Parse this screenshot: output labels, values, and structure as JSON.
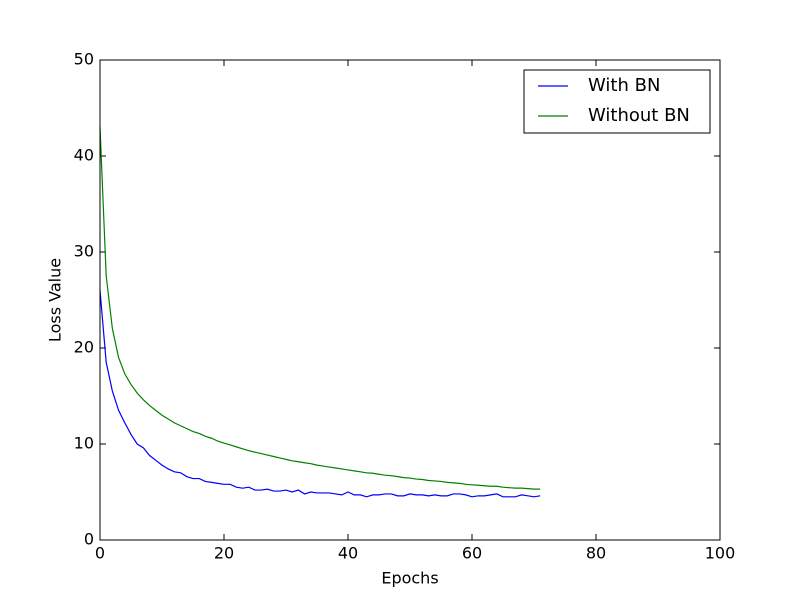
{
  "chart_data": {
    "type": "line",
    "xlabel": "Epochs",
    "ylabel": "Loss Value",
    "x": [
      0,
      1,
      2,
      3,
      4,
      5,
      6,
      7,
      8,
      9,
      10,
      11,
      12,
      13,
      14,
      15,
      16,
      17,
      18,
      19,
      20,
      21,
      22,
      23,
      24,
      25,
      26,
      27,
      28,
      29,
      30,
      31,
      32,
      33,
      34,
      35,
      36,
      37,
      38,
      39,
      40,
      41,
      42,
      43,
      44,
      45,
      46,
      47,
      48,
      49,
      50,
      51,
      52,
      53,
      54,
      55,
      56,
      57,
      58,
      59,
      60,
      61,
      62,
      63,
      64,
      65,
      66,
      67,
      68,
      69,
      70,
      71
    ],
    "series": [
      {
        "name": "With BN",
        "color": "#0000ff",
        "values": [
          26,
          18.5,
          15.5,
          13.5,
          12.2,
          11,
          10,
          9.6,
          8.8,
          8.3,
          7.8,
          7.4,
          7.1,
          7.0,
          6.6,
          6.4,
          6.4,
          6.1,
          6.0,
          5.9,
          5.8,
          5.8,
          5.5,
          5.4,
          5.5,
          5.2,
          5.2,
          5.3,
          5.1,
          5.1,
          5.2,
          5.0,
          5.2,
          4.8,
          5.0,
          4.9,
          4.9,
          4.9,
          4.8,
          4.7,
          5.0,
          4.7,
          4.7,
          4.5,
          4.7,
          4.7,
          4.8,
          4.8,
          4.6,
          4.6,
          4.8,
          4.7,
          4.7,
          4.6,
          4.7,
          4.6,
          4.6,
          4.8,
          4.8,
          4.7,
          4.5,
          4.6,
          4.6,
          4.7,
          4.8,
          4.5,
          4.5,
          4.5,
          4.7,
          4.6,
          4.5,
          4.6
        ]
      },
      {
        "name": "Without BN",
        "color": "#008000",
        "values": [
          43,
          27.5,
          22,
          19,
          17.3,
          16.2,
          15.3,
          14.6,
          14.0,
          13.5,
          13.0,
          12.6,
          12.2,
          11.9,
          11.6,
          11.3,
          11.1,
          10.8,
          10.6,
          10.3,
          10.1,
          9.9,
          9.7,
          9.5,
          9.3,
          9.15,
          9.0,
          8.85,
          8.7,
          8.55,
          8.4,
          8.25,
          8.15,
          8.05,
          7.95,
          7.8,
          7.7,
          7.6,
          7.5,
          7.4,
          7.3,
          7.2,
          7.1,
          7.0,
          6.95,
          6.85,
          6.75,
          6.7,
          6.6,
          6.5,
          6.45,
          6.35,
          6.3,
          6.2,
          6.15,
          6.1,
          6.0,
          5.95,
          5.9,
          5.8,
          5.75,
          5.7,
          5.65,
          5.6,
          5.6,
          5.5,
          5.45,
          5.4,
          5.4,
          5.35,
          5.3,
          5.3
        ]
      }
    ],
    "xlim": [
      0,
      100
    ],
    "xticks": [
      0,
      20,
      40,
      60,
      80,
      100
    ],
    "ylim": [
      0,
      50
    ],
    "yticks": [
      0,
      10,
      20,
      30,
      40,
      50
    ],
    "grid": false,
    "legend": "upper right"
  }
}
